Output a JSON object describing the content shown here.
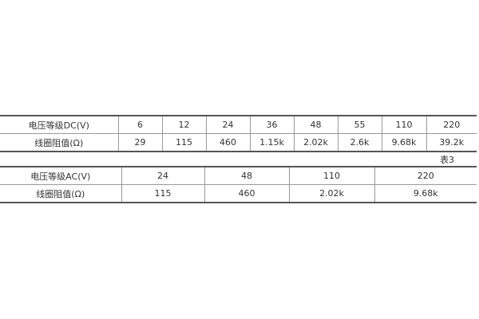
{
  "dc_table": {
    "row_labels": [
      "电压等级DC(V)",
      "线圈阻值(Ω)"
    ],
    "voltages": [
      "6",
      "12",
      "24",
      "36",
      "48",
      "55",
      "110",
      "220"
    ],
    "resistances": [
      "29",
      "115",
      "460",
      "1.15k",
      "2.02k",
      "2.6k",
      "9.68k",
      "39.2k"
    ]
  },
  "caption": "表3",
  "ac_table": {
    "row_labels": [
      "电压等级AC(V)",
      "线圈阻值(Ω)"
    ],
    "voltages": [
      "24",
      "48",
      "110",
      "220"
    ],
    "resistances": [
      "115",
      "460",
      "2.02k",
      "9.68k"
    ]
  }
}
